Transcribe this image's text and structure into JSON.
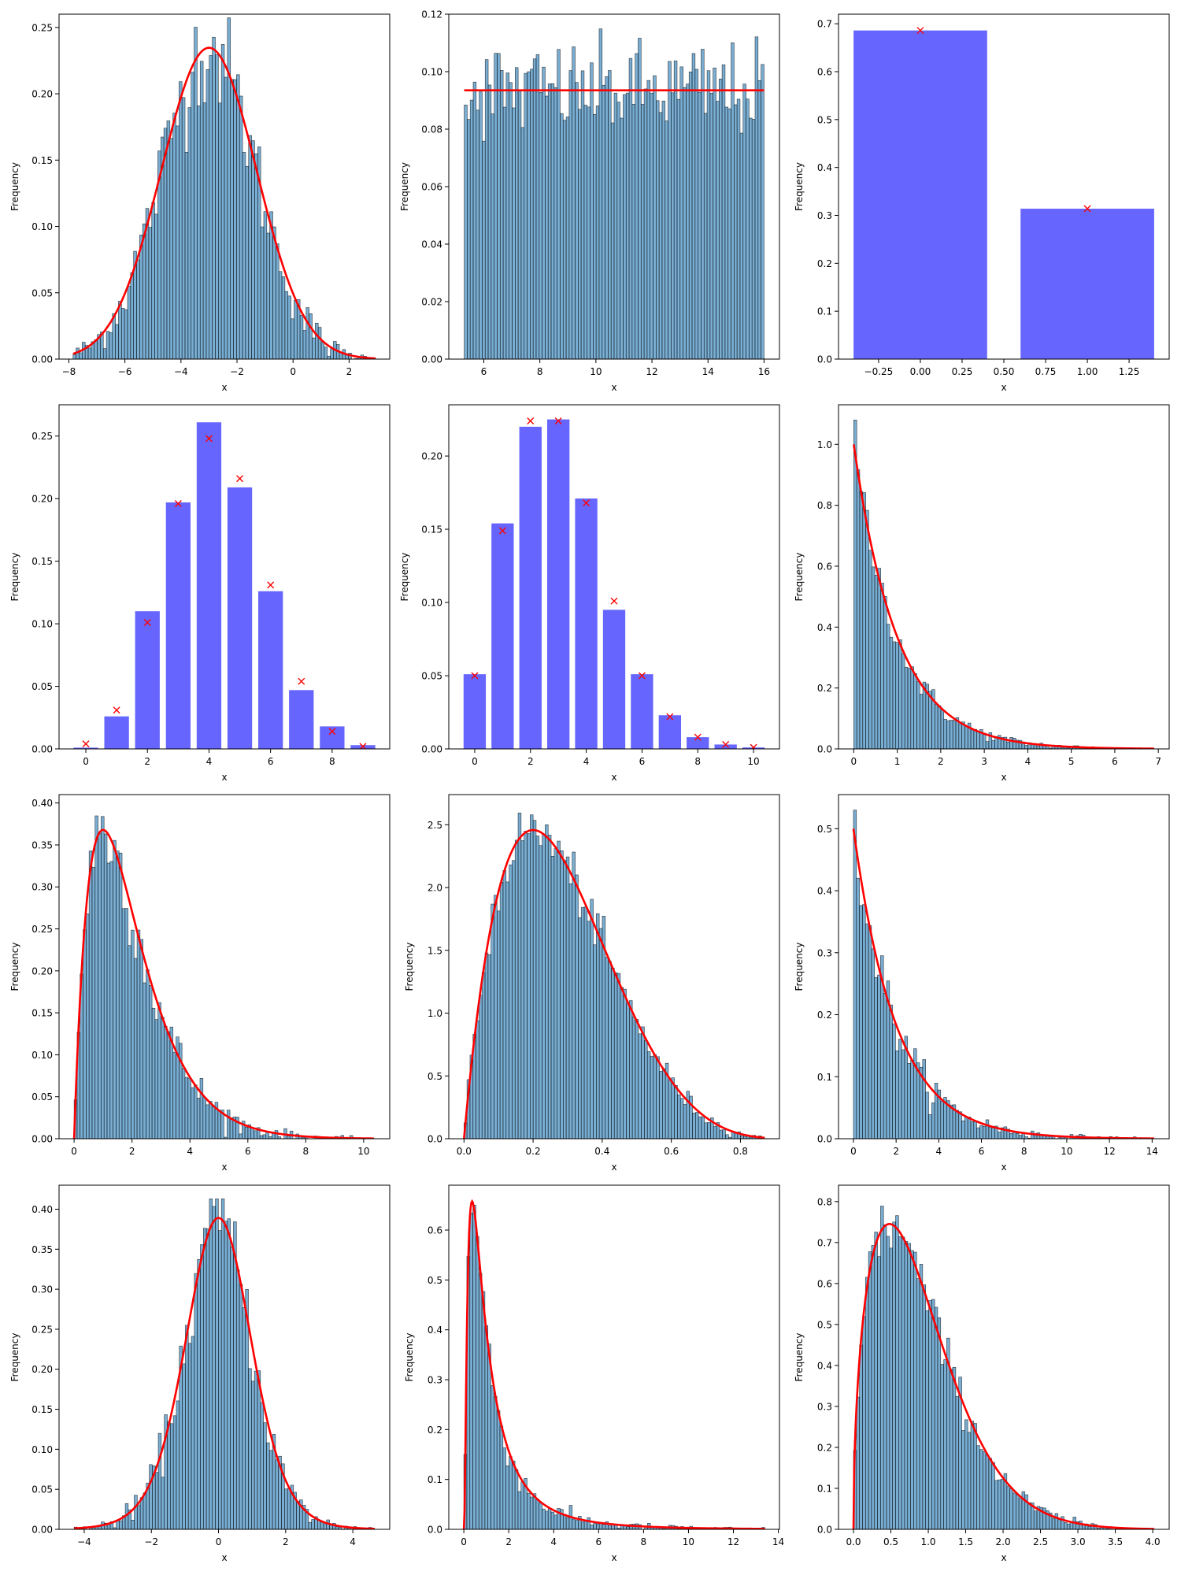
{
  "figure": {
    "rows": 4,
    "cols": 3,
    "bar_color": "#1f77b4",
    "bar_alpha": 0.6,
    "bar_edge": "#000000",
    "pmf_bar_color": "#6666ff",
    "fit_color": "#ff0000"
  },
  "chart_data": [
    {
      "id": "normal",
      "type": "histogram",
      "title": "",
      "xlabel": "x",
      "ylabel": "Frequency",
      "xlim": [
        -8.35,
        3.45
      ],
      "ylim": [
        0,
        0.26
      ],
      "xticks": [
        -8,
        -6,
        -4,
        -2,
        0,
        2
      ],
      "xtick_labels": [
        "−8",
        "−6",
        "−4",
        "−2",
        "0",
        "2"
      ],
      "yticks": [
        0,
        0.05,
        0.1,
        0.15,
        0.2,
        0.25
      ],
      "ytick_labels": [
        "0.00",
        "0.05",
        "0.10",
        "0.15",
        "0.20",
        "0.25"
      ],
      "bins": 100,
      "range": [
        -7.85,
        2.95
      ],
      "fit": {
        "dist": "normal",
        "mu": -3.0,
        "sigma": 1.7,
        "peak": 0.235
      }
    },
    {
      "id": "uniform",
      "type": "histogram",
      "title": "",
      "xlabel": "x",
      "ylabel": "Frequency",
      "xlim": [
        4.75,
        16.55
      ],
      "ylim": [
        0,
        0.12
      ],
      "xticks": [
        6,
        8,
        10,
        12,
        14,
        16
      ],
      "xtick_labels": [
        "6",
        "8",
        "10",
        "12",
        "14",
        "16"
      ],
      "yticks": [
        0,
        0.02,
        0.04,
        0.06,
        0.08,
        0.1,
        0.12
      ],
      "ytick_labels": [
        "0.00",
        "0.02",
        "0.04",
        "0.06",
        "0.08",
        "0.10",
        "0.12"
      ],
      "bins": 100,
      "range": [
        5.3,
        16.0
      ],
      "fit": {
        "dist": "uniform",
        "a": 5.3,
        "b": 16.0,
        "level": 0.0935
      }
    },
    {
      "id": "bernoulli",
      "type": "bar",
      "title": "",
      "xlabel": "x",
      "ylabel": "Frequency",
      "xlim": [
        -0.49,
        1.49
      ],
      "ylim": [
        0,
        0.72
      ],
      "xticks": [
        -0.25,
        0,
        0.25,
        0.5,
        0.75,
        1.0,
        1.25
      ],
      "xtick_labels": [
        "−0.25",
        "0.00",
        "0.25",
        "0.50",
        "0.75",
        "1.00",
        "1.25"
      ],
      "yticks": [
        0,
        0.1,
        0.2,
        0.3,
        0.4,
        0.5,
        0.6,
        0.7
      ],
      "ytick_labels": [
        "0.0",
        "0.1",
        "0.2",
        "0.3",
        "0.4",
        "0.5",
        "0.6",
        "0.7"
      ],
      "categories": [
        0,
        1
      ],
      "values": [
        0.686,
        0.314
      ],
      "pmf": [
        0.686,
        0.314
      ]
    },
    {
      "id": "binomial",
      "type": "bar",
      "title": "",
      "xlabel": "x",
      "ylabel": "Frequency",
      "xlim": [
        -0.87,
        9.87
      ],
      "ylim": [
        0,
        0.275
      ],
      "xticks": [
        0,
        2,
        4,
        6,
        8
      ],
      "xtick_labels": [
        "0",
        "2",
        "4",
        "6",
        "8"
      ],
      "yticks": [
        0,
        0.05,
        0.1,
        0.15,
        0.2,
        0.25
      ],
      "ytick_labels": [
        "0.00",
        "0.05",
        "0.10",
        "0.15",
        "0.20",
        "0.25"
      ],
      "categories": [
        0,
        1,
        2,
        3,
        4,
        5,
        6,
        7,
        8,
        9
      ],
      "values": [
        0.001,
        0.026,
        0.11,
        0.197,
        0.261,
        0.209,
        0.126,
        0.047,
        0.018,
        0.003
      ],
      "pmf": [
        0.004,
        0.031,
        0.101,
        0.196,
        0.248,
        0.216,
        0.131,
        0.054,
        0.014,
        0.002
      ]
    },
    {
      "id": "poisson",
      "type": "bar",
      "title": "",
      "xlabel": "x",
      "ylabel": "Frequency",
      "xlim": [
        -0.93,
        10.93
      ],
      "ylim": [
        0,
        0.235
      ],
      "xticks": [
        0,
        2,
        4,
        6,
        8,
        10
      ],
      "xtick_labels": [
        "0",
        "2",
        "4",
        "6",
        "8",
        "10"
      ],
      "yticks": [
        0,
        0.05,
        0.1,
        0.15,
        0.2
      ],
      "ytick_labels": [
        "0.00",
        "0.05",
        "0.10",
        "0.15",
        "0.20"
      ],
      "categories": [
        0,
        1,
        2,
        3,
        4,
        5,
        6,
        7,
        8,
        9,
        10
      ],
      "values": [
        0.051,
        0.154,
        0.22,
        0.225,
        0.171,
        0.095,
        0.051,
        0.023,
        0.008,
        0.003,
        0.001
      ],
      "pmf": [
        0.05,
        0.149,
        0.224,
        0.224,
        0.168,
        0.101,
        0.05,
        0.022,
        0.008,
        0.003,
        0.001
      ]
    },
    {
      "id": "exponential",
      "type": "histogram",
      "title": "",
      "xlabel": "x",
      "ylabel": "Frequency",
      "xlim": [
        -0.35,
        7.25
      ],
      "ylim": [
        0,
        1.13
      ],
      "xticks": [
        0,
        1,
        2,
        3,
        4,
        5,
        6,
        7
      ],
      "xtick_labels": [
        "0",
        "1",
        "2",
        "3",
        "4",
        "5",
        "6",
        "7"
      ],
      "yticks": [
        0,
        0.2,
        0.4,
        0.6,
        0.8,
        1.0
      ],
      "ytick_labels": [
        "0.0",
        "0.2",
        "0.4",
        "0.6",
        "0.8",
        "1.0"
      ],
      "bins": 100,
      "range": [
        0,
        6.9
      ],
      "max_bar": 1.08,
      "fit": {
        "dist": "exponential",
        "lambda": 1.0
      }
    },
    {
      "id": "gamma",
      "type": "histogram",
      "title": "",
      "xlabel": "x",
      "ylabel": "Frequency",
      "xlim": [
        -0.52,
        10.9
      ],
      "ylim": [
        0,
        0.41
      ],
      "xticks": [
        0,
        2,
        4,
        6,
        8,
        10
      ],
      "xtick_labels": [
        "0",
        "2",
        "4",
        "6",
        "8",
        "10"
      ],
      "yticks": [
        0,
        0.05,
        0.1,
        0.15,
        0.2,
        0.25,
        0.3,
        0.35,
        0.4
      ],
      "ytick_labels": [
        "0.00",
        "0.05",
        "0.10",
        "0.15",
        "0.20",
        "0.25",
        "0.30",
        "0.35",
        "0.40"
      ],
      "bins": 100,
      "range": [
        0,
        10.35
      ],
      "max_bar": 0.39,
      "fit": {
        "dist": "gamma",
        "shape": 2.0,
        "scale": 1.0
      }
    },
    {
      "id": "beta",
      "type": "histogram",
      "title": "",
      "xlabel": "x",
      "ylabel": "Frequency",
      "xlim": [
        -0.044,
        0.913
      ],
      "ylim": [
        0,
        2.74
      ],
      "xticks": [
        0,
        0.2,
        0.4,
        0.6,
        0.8
      ],
      "xtick_labels": [
        "0.0",
        "0.2",
        "0.4",
        "0.6",
        "0.8"
      ],
      "yticks": [
        0,
        0.5,
        1.0,
        1.5,
        2.0,
        2.5
      ],
      "ytick_labels": [
        "0.0",
        "0.5",
        "1.0",
        "1.5",
        "2.0",
        "2.5"
      ],
      "bins": 100,
      "range": [
        0,
        0.87
      ],
      "max_bar": 2.62,
      "fit": {
        "dist": "beta",
        "a": 2.0,
        "b": 5.0
      }
    },
    {
      "id": "chi_square",
      "type": "histogram",
      "title": "",
      "xlabel": "x",
      "ylabel": "Frequency",
      "xlim": [
        -0.7,
        14.8
      ],
      "ylim": [
        0,
        0.555
      ],
      "xticks": [
        0,
        2,
        4,
        6,
        8,
        10,
        12,
        14
      ],
      "xtick_labels": [
        "0",
        "2",
        "4",
        "6",
        "8",
        "10",
        "12",
        "14"
      ],
      "yticks": [
        0,
        0.1,
        0.2,
        0.3,
        0.4,
        0.5
      ],
      "ytick_labels": [
        "0.0",
        "0.1",
        "0.2",
        "0.3",
        "0.4",
        "0.5"
      ],
      "bins": 100,
      "range": [
        0,
        14.1
      ],
      "max_bar": 0.53,
      "fit": {
        "dist": "chi2",
        "df": 2
      }
    },
    {
      "id": "student_t",
      "type": "histogram",
      "title": "",
      "xlabel": "x",
      "ylabel": "Frequency",
      "xlim": [
        -4.75,
        5.1
      ],
      "ylim": [
        0,
        0.43
      ],
      "xticks": [
        -4,
        -2,
        0,
        2,
        4
      ],
      "xtick_labels": [
        "−4",
        "−2",
        "0",
        "2",
        "4"
      ],
      "yticks": [
        0,
        0.05,
        0.1,
        0.15,
        0.2,
        0.25,
        0.3,
        0.35,
        0.4
      ],
      "ytick_labels": [
        "0.00",
        "0.05",
        "0.10",
        "0.15",
        "0.20",
        "0.25",
        "0.30",
        "0.35",
        "0.40"
      ],
      "bins": 100,
      "range": [
        -4.3,
        4.65
      ],
      "max_bar": 0.413,
      "fit": {
        "dist": "t",
        "df": 10
      }
    },
    {
      "id": "lognormal",
      "type": "histogram",
      "title": "",
      "xlabel": "x",
      "ylabel": "Frequency",
      "xlim": [
        -0.67,
        14.05
      ],
      "ylim": [
        0,
        0.69
      ],
      "xticks": [
        0,
        2,
        4,
        6,
        8,
        10,
        12,
        14
      ],
      "xtick_labels": [
        "0",
        "2",
        "4",
        "6",
        "8",
        "10",
        "12",
        "14"
      ],
      "yticks": [
        0,
        0.1,
        0.2,
        0.3,
        0.4,
        0.5,
        0.6
      ],
      "ytick_labels": [
        "0.0",
        "0.1",
        "0.2",
        "0.3",
        "0.4",
        "0.5",
        "0.6"
      ],
      "bins": 100,
      "range": [
        0,
        13.4
      ],
      "max_bar": 0.66,
      "fit": {
        "dist": "lognormal",
        "mu": 0.0,
        "sigma": 1.0
      }
    },
    {
      "id": "weibull",
      "type": "histogram",
      "title": "",
      "xlabel": "x",
      "ylabel": "Frequency",
      "xlim": [
        -0.2,
        4.22
      ],
      "ylim": [
        0,
        0.84
      ],
      "xticks": [
        0,
        0.5,
        1.0,
        1.5,
        2.0,
        2.5,
        3.0,
        3.5,
        4.0
      ],
      "xtick_labels": [
        "0.0",
        "0.5",
        "1.0",
        "1.5",
        "2.0",
        "2.5",
        "3.0",
        "3.5",
        "4.0"
      ],
      "yticks": [
        0,
        0.1,
        0.2,
        0.3,
        0.4,
        0.5,
        0.6,
        0.7,
        0.8
      ],
      "ytick_labels": [
        "0.0",
        "0.1",
        "0.2",
        "0.3",
        "0.4",
        "0.5",
        "0.6",
        "0.7",
        "0.8"
      ],
      "bins": 100,
      "range": [
        0,
        4.02
      ],
      "max_bar": 0.8,
      "fit": {
        "dist": "weibull",
        "k": 1.5,
        "lambda": 1.0
      }
    }
  ]
}
